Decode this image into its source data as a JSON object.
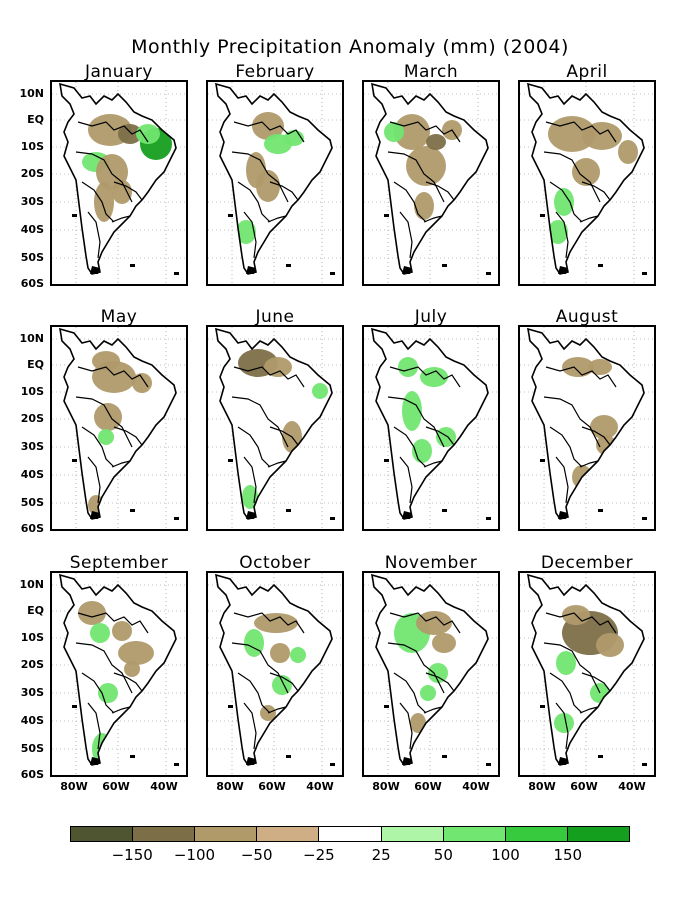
{
  "title": "Monthly Precipitation Anomaly (mm) (2004)",
  "months": [
    "January",
    "February",
    "March",
    "April",
    "May",
    "June",
    "July",
    "August",
    "September",
    "October",
    "November",
    "December"
  ],
  "lat_labels": [
    "10N",
    "EQ",
    "10S",
    "20S",
    "30S",
    "40S",
    "50S",
    "60S"
  ],
  "lon_labels": [
    "80W",
    "60W",
    "40W"
  ],
  "colorbar": {
    "colors": [
      "#4f5530",
      "#7c6f48",
      "#b09a6a",
      "#cfae86",
      "#ffffff",
      "#aff5a8",
      "#71e671",
      "#37c93e",
      "#159f1e"
    ],
    "labels": [
      "−150",
      "−100",
      "−50",
      "−25",
      "25",
      "50",
      "100",
      "150"
    ]
  },
  "colors": {
    "land": "#ffffff",
    "outline": "#000000",
    "dry_strong": "#7c6f48",
    "dry": "#b09a6a",
    "wet": "#71e671",
    "wet_strong": "#159f1e"
  }
}
